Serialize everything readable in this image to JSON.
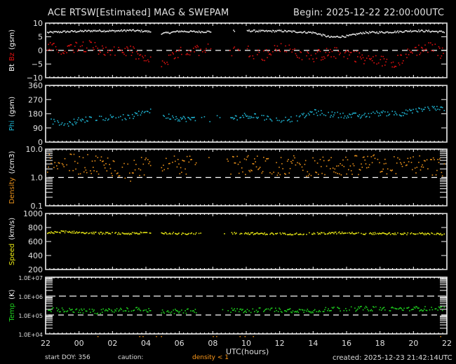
{
  "header": {
    "title": "ACE RTSW[Estimated] MAG & SWEPAM",
    "begin": "Begin: 2025-12-22 22:00:00UTC"
  },
  "footer": {
    "start_doy": "start DOY: 356",
    "caution": "caution:",
    "density_warning": "density < 1",
    "created": "created: 2025-12-23 21:42:14UTC",
    "xlabel": "UTC(hours)"
  },
  "colors": {
    "background": "#000000",
    "axis": "#ffffff",
    "bt": "#e8e8e8",
    "bz": "#e01010",
    "phi": "#1eb4d2",
    "density": "#e8901a",
    "speed": "#e6e614",
    "temp": "#1ed21e",
    "caution": "#ff9a1a"
  },
  "chart_data": [
    {
      "type": "scatter",
      "panel": "mag_bt_bz",
      "ylabel": "Bt Bz (gsm)",
      "ylabel_parts": [
        {
          "text": "Bt",
          "color": "#ffffff"
        },
        {
          "text": "Bz",
          "color": "#e01010"
        },
        {
          "text": "(gsm)",
          "color": "#ffffff"
        }
      ],
      "ylim": [
        -10,
        10
      ],
      "yticks": [
        -10,
        -5,
        0,
        5,
        10
      ],
      "reference_lines": [
        0
      ],
      "x_hours": [
        0,
        1,
        2,
        3,
        4,
        5,
        6,
        7,
        8,
        9,
        10,
        11,
        12,
        13,
        14,
        15,
        16,
        17,
        18,
        19,
        20,
        21,
        22,
        23,
        24
      ],
      "series": [
        {
          "name": "Bt",
          "color": "#e8e8e8",
          "values": [
            6.5,
            6.8,
            7.0,
            7.2,
            7.1,
            7.3,
            7.0,
            6.2,
            7.0,
            6.8,
            6.9,
            null,
            7.2,
            7.0,
            7.1,
            6.8,
            6.5,
            4.8,
            5.2,
            6.5,
            6.6,
            6.8,
            7.2,
            7.0,
            6.7
          ]
        },
        {
          "name": "Bz",
          "color": "#e01010",
          "values": [
            1,
            0,
            2,
            1,
            -1,
            0,
            -4,
            -5,
            -1,
            0,
            2,
            null,
            0,
            -2,
            1,
            -1,
            -2,
            -1,
            -1,
            -3,
            -4,
            -4,
            0,
            1,
            -2
          ]
        }
      ]
    },
    {
      "type": "scatter",
      "panel": "phi",
      "ylabel": "Phi (gsm)",
      "ylim": [
        0,
        360
      ],
      "yticks": [
        0,
        90,
        180,
        270,
        360
      ],
      "x_hours": [
        0,
        1,
        2,
        3,
        4,
        5,
        6,
        7,
        8,
        9,
        10,
        11,
        12,
        13,
        14,
        15,
        16,
        17,
        18,
        19,
        20,
        21,
        22,
        23,
        24
      ],
      "series": [
        {
          "name": "Phi",
          "color": "#1eb4d2",
          "values": [
            150,
            105,
            140,
            150,
            160,
            155,
            200,
            170,
            150,
            145,
            null,
            150,
            170,
            155,
            140,
            150,
            190,
            175,
            170,
            165,
            185,
            180,
            195,
            215,
            205
          ]
        }
      ]
    },
    {
      "type": "scatter",
      "panel": "density",
      "ylabel": "Density (/cm3)",
      "yscale": "log",
      "ylim": [
        0.1,
        10.0
      ],
      "yticks": [
        "0.1",
        "1.0",
        "10.0"
      ],
      "reference_lines": [
        1.0
      ],
      "x_hours": [
        0,
        1,
        2,
        3,
        4,
        5,
        6,
        7,
        8,
        9,
        10,
        11,
        12,
        13,
        14,
        15,
        16,
        17,
        18,
        19,
        20,
        21,
        22,
        23,
        24
      ],
      "series": [
        {
          "name": "Density",
          "color": "#e8901a",
          "values": [
            3.0,
            3.2,
            2.8,
            3.0,
            2.5,
            1.5,
            2.8,
            3.2,
            2.6,
            2.8,
            null,
            2.6,
            2.8,
            3.0,
            2.4,
            2.8,
            2.2,
            2.6,
            2.4,
            3.0,
            2.8,
            2.6,
            2.8,
            2.4,
            2.2
          ]
        }
      ]
    },
    {
      "type": "scatter",
      "panel": "speed",
      "ylabel": "Speed (km/s)",
      "ylim": [
        200,
        1000
      ],
      "yticks": [
        200,
        400,
        600,
        800,
        1000
      ],
      "x_hours": [
        0,
        1,
        2,
        3,
        4,
        5,
        6,
        7,
        8,
        9,
        10,
        11,
        12,
        13,
        14,
        15,
        16,
        17,
        18,
        19,
        20,
        21,
        22,
        23,
        24
      ],
      "series": [
        {
          "name": "Speed",
          "color": "#e6e614",
          "values": [
            720,
            740,
            730,
            720,
            715,
            712,
            725,
            720,
            715,
            710,
            null,
            720,
            715,
            710,
            712,
            708,
            712,
            720,
            725,
            712,
            715,
            708,
            712,
            710,
            700
          ]
        }
      ]
    },
    {
      "type": "scatter",
      "panel": "temp",
      "ylabel": "Temp (K)",
      "yscale": "log",
      "ylim": [
        "1.0E+04",
        "1.0E+07"
      ],
      "yticks": [
        "1.0E+04",
        "1.0E+05",
        "1.0E+06",
        "1.0E+07"
      ],
      "reference_lines": [
        "1.0E+05",
        "1.0E+06"
      ],
      "x_hours": [
        0,
        1,
        2,
        3,
        4,
        5,
        6,
        7,
        8,
        9,
        10,
        11,
        12,
        13,
        14,
        15,
        16,
        17,
        18,
        19,
        20,
        21,
        22,
        23,
        24
      ],
      "series": [
        {
          "name": "Temp",
          "color": "#1ed21e",
          "values": [
            200000,
            180000,
            160000,
            150000,
            170000,
            200000,
            180000,
            160000,
            150000,
            170000,
            null,
            180000,
            170000,
            190000,
            180000,
            175000,
            170000,
            210000,
            200000,
            220000,
            210000,
            200000,
            220000,
            210000,
            230000
          ]
        }
      ]
    }
  ],
  "x_axis": {
    "label": "UTC(hours)",
    "ticks": [
      "22",
      "00",
      "02",
      "04",
      "06",
      "08",
      "10",
      "12",
      "14",
      "16",
      "18",
      "20",
      "22"
    ]
  }
}
